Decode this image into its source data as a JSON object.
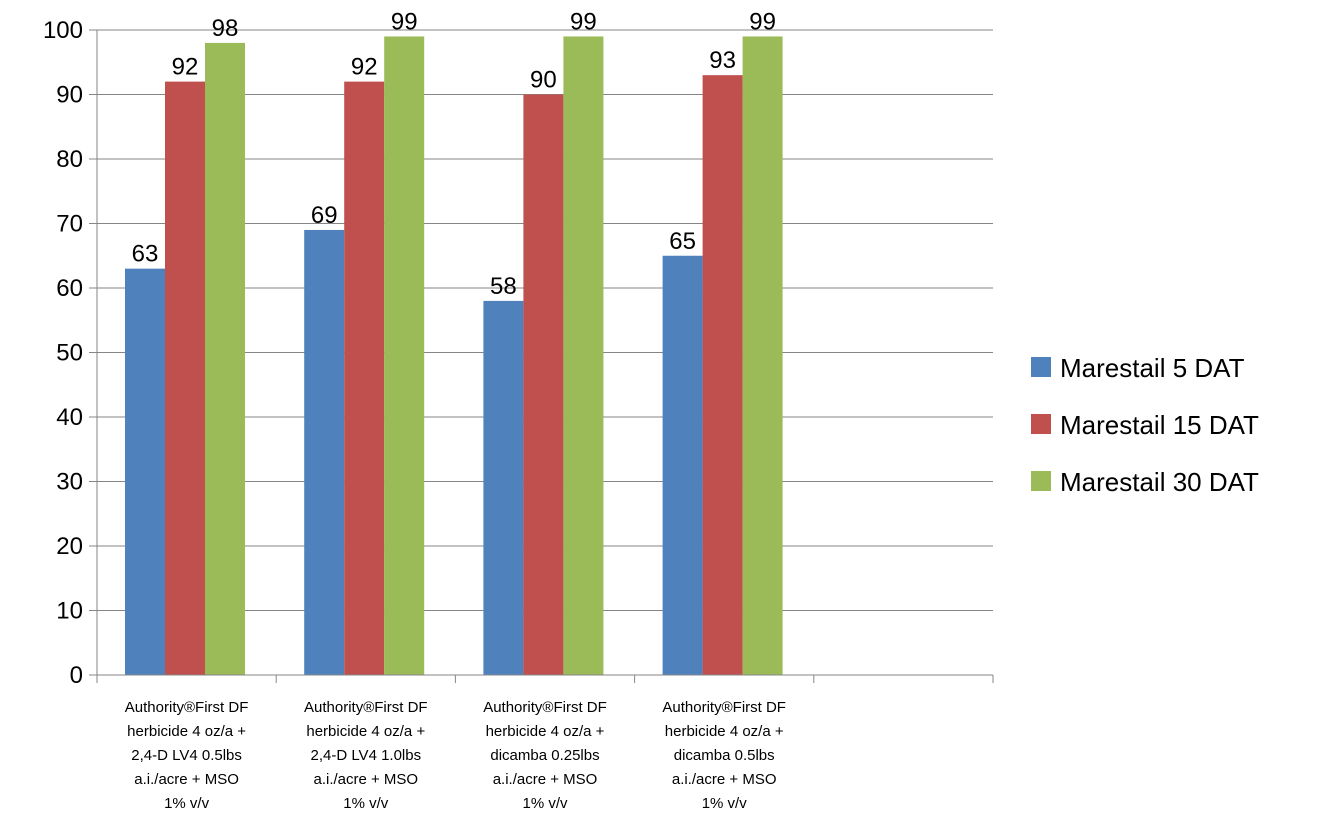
{
  "chart_data": {
    "type": "bar",
    "title": "",
    "xlabel": "",
    "ylabel": "",
    "ylim": [
      0,
      100
    ],
    "yticks": [
      0,
      10,
      20,
      30,
      40,
      50,
      60,
      70,
      80,
      90,
      100
    ],
    "grid": true,
    "legend_position": "right",
    "categories": [
      [
        "Authority®First DF",
        "herbicide 4 oz/a +",
        "2,4-D LV4 0.5lbs",
        "a.i./acre + MSO",
        "1% v/v"
      ],
      [
        "Authority®First DF",
        "herbicide 4  oz/a +",
        "2,4-D LV4 1.0lbs",
        "a.i./acre + MSO",
        "1% v/v"
      ],
      [
        "Authority®First DF",
        "herbicide 4 oz/a +",
        "dicamba 0.25lbs",
        "a.i./acre + MSO",
        "1% v/v"
      ],
      [
        "Authority®First DF",
        "herbicide 4 oz/a +",
        "dicamba 0.5lbs",
        "a.i./acre + MSO",
        "1% v/v"
      ]
    ],
    "series": [
      {
        "name": "Marestail 5 DAT",
        "color": "#4F81BD",
        "values": [
          63,
          69,
          58,
          65
        ]
      },
      {
        "name": "Marestail 15 DAT",
        "color": "#C0504D",
        "values": [
          92,
          92,
          90,
          93
        ]
      },
      {
        "name": "Marestail 30 DAT",
        "color": "#9BBB59",
        "values": [
          98,
          99,
          99,
          99
        ]
      }
    ]
  }
}
